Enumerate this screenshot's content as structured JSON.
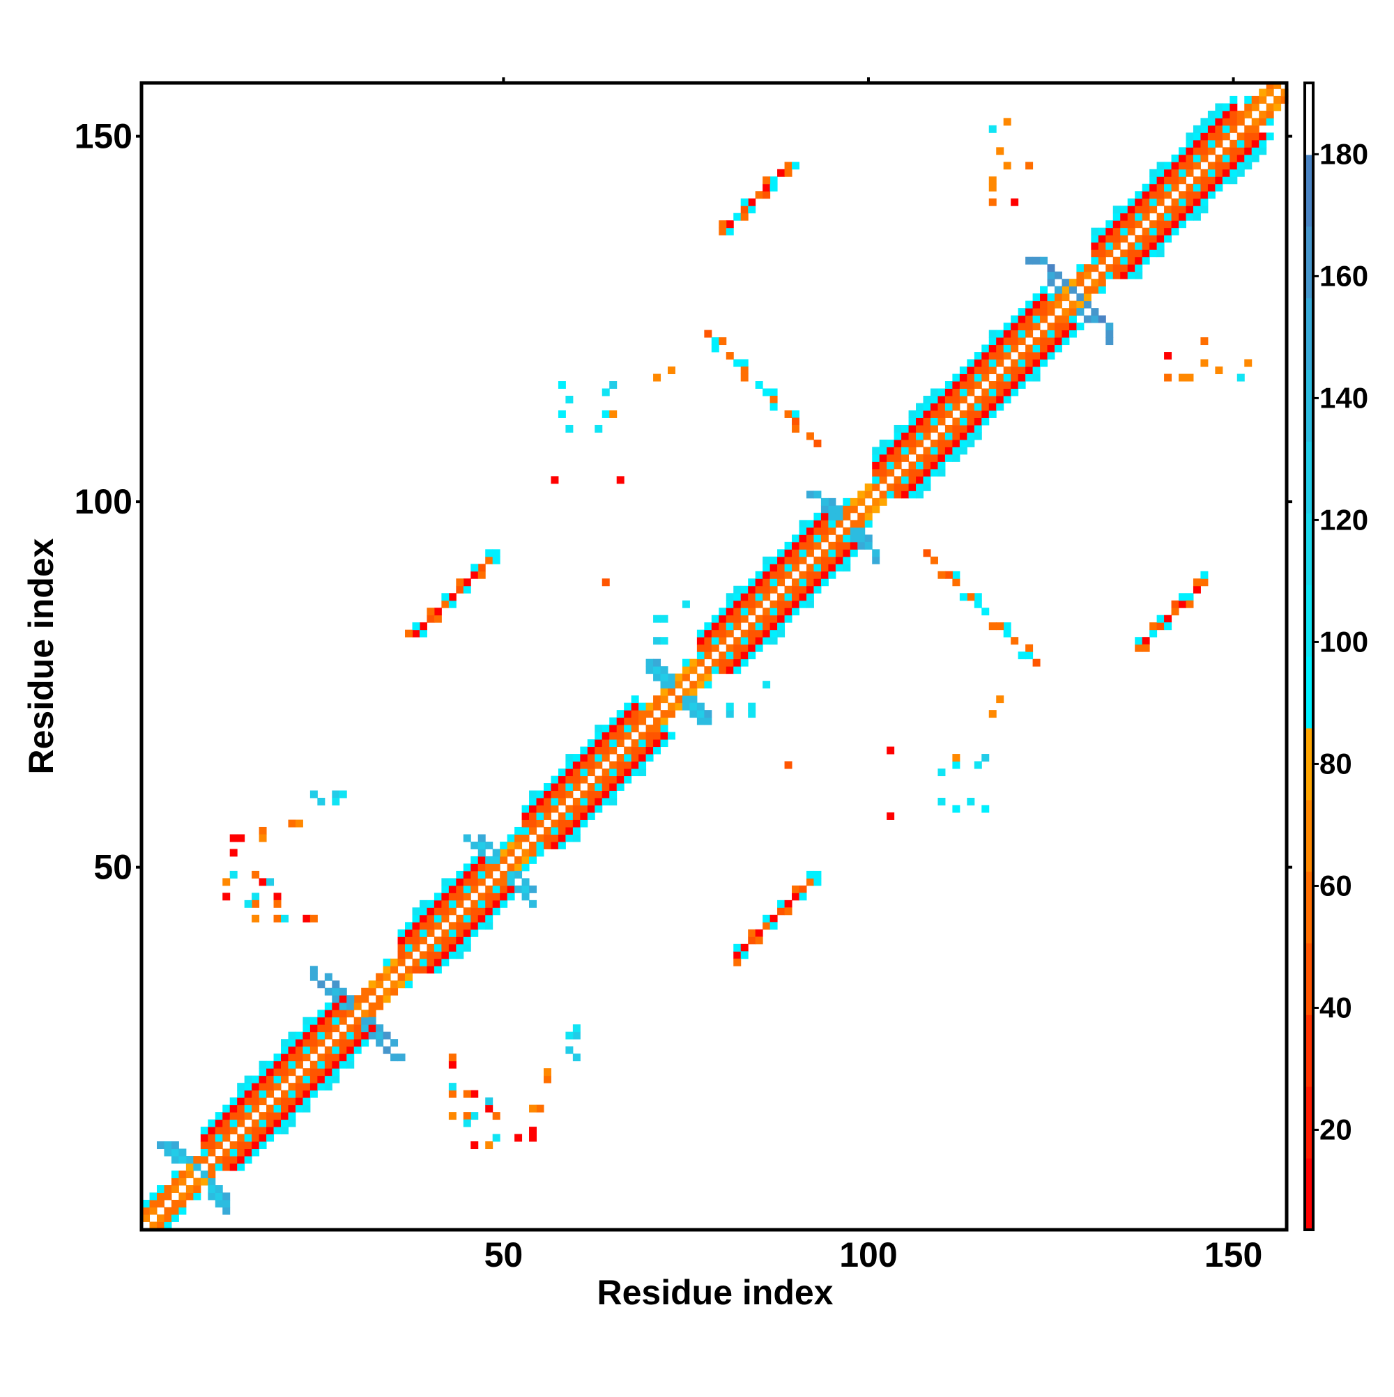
{
  "chart_data": {
    "type": "heatmap",
    "title": "",
    "xlabel": "Residue index",
    "ylabel": "Residue index",
    "n_residues": 157,
    "xlim": [
      0.4,
      157.3
    ],
    "ylim": [
      0.4,
      157.3
    ],
    "xticks": [
      50,
      100,
      150
    ],
    "yticks": [
      50,
      100,
      150
    ],
    "symmetric": true,
    "colorbar": {
      "range": [
        3.6,
        191.7
      ],
      "ticks": [
        20,
        40,
        60,
        80,
        100,
        120,
        140,
        160,
        180
      ],
      "bins": [
        "#ff0000",
        "#ff1a00",
        "#ff3300",
        "#ff5500",
        "#ff6e00",
        "#ff8800",
        "#ffa500",
        "#00f0ff",
        "#10e4f4",
        "#1cd8ec",
        "#22cce8",
        "#2cbce0",
        "#38aad8",
        "#4696cc",
        "#4a84c4",
        "#ffffff"
      ]
    },
    "helices": [
      [
        9,
        28
      ],
      [
        36,
        47
      ],
      [
        53,
        68
      ],
      [
        77,
        95
      ],
      [
        101,
        124
      ],
      [
        131,
        150
      ]
    ],
    "kinks": [
      {
        "center": 8,
        "arm": 4,
        "value": 130
      },
      {
        "center": 30,
        "arm": 6,
        "value": 140
      },
      {
        "center": 50,
        "arm": 4,
        "value": 125
      },
      {
        "center": 74,
        "arm": 4,
        "value": 130
      },
      {
        "center": 97,
        "arm": 4,
        "value": 135
      },
      {
        "center": 128,
        "arm": 5,
        "value": 150
      }
    ],
    "pairings": [
      {
        "x0": 80,
        "y0": 137,
        "dir": 1,
        "core": [
          60,
          10,
          92,
          40,
          10,
          60,
          10,
          92,
          10,
          60
        ],
        "flank": [
          92,
          0,
          60,
          92,
          0,
          40,
          92,
          0,
          60,
          92
        ],
        "flank2": [
          0,
          60,
          0,
          0,
          92,
          0,
          0,
          60,
          0,
          0
        ]
      },
      {
        "x0": 78,
        "y0": 123,
        "dir": -1,
        "core": [
          40,
          92,
          0,
          60,
          92,
          60,
          0,
          92,
          92,
          60,
          0,
          60,
          40,
          0,
          60,
          40
        ],
        "flank": [
          0,
          60,
          0,
          0,
          92,
          0,
          0,
          0,
          92,
          0,
          0,
          92,
          0,
          0,
          0,
          0
        ],
        "flank2": [
          0,
          0,
          92,
          0,
          0,
          0,
          60,
          0,
          0,
          0,
          92,
          0,
          0,
          60,
          0,
          0
        ]
      },
      {
        "x0": 38,
        "y0": 82,
        "dir": 1,
        "core": [
          10,
          10,
          40,
          10,
          60,
          10,
          40,
          10,
          10,
          40,
          60,
          92
        ],
        "flank": [
          92,
          0,
          60,
          0,
          92,
          0,
          92,
          0,
          60,
          0,
          92,
          0
        ],
        "flank2": [
          60,
          92,
          0,
          60,
          0,
          92,
          0,
          60,
          0,
          92,
          0,
          92
        ]
      }
    ],
    "contacts": [
      [
        58,
        116,
        92
      ],
      [
        59,
        114,
        100
      ],
      [
        58,
        112,
        92
      ],
      [
        59,
        110,
        100
      ],
      [
        64,
        115,
        100
      ],
      [
        65,
        116,
        130
      ],
      [
        64,
        112,
        92
      ],
      [
        65,
        112,
        70
      ],
      [
        63,
        110,
        100
      ],
      [
        13,
        54,
        10
      ],
      [
        14,
        54,
        10
      ],
      [
        17,
        55,
        60
      ],
      [
        17,
        54,
        70
      ],
      [
        21,
        56,
        60
      ],
      [
        22,
        56,
        70
      ],
      [
        13,
        52,
        10
      ],
      [
        12,
        48,
        70
      ],
      [
        13,
        49,
        100
      ],
      [
        16,
        49,
        60
      ],
      [
        17,
        48,
        10
      ],
      [
        18,
        48,
        130
      ],
      [
        16,
        46,
        100
      ],
      [
        16,
        45,
        60
      ],
      [
        15,
        45,
        100
      ],
      [
        19,
        46,
        10
      ],
      [
        19,
        45,
        60
      ],
      [
        12,
        46,
        10
      ],
      [
        16,
        43,
        70
      ],
      [
        19,
        43,
        60
      ],
      [
        20,
        43,
        100
      ],
      [
        23,
        43,
        10
      ],
      [
        24,
        43,
        60
      ],
      [
        24,
        60,
        130
      ],
      [
        27,
        60,
        130
      ],
      [
        28,
        60,
        100
      ],
      [
        59,
        25,
        130
      ],
      [
        59,
        27,
        100
      ],
      [
        57,
        103,
        10
      ],
      [
        64,
        89,
        40
      ],
      [
        71,
        117,
        70
      ],
      [
        71,
        84,
        100
      ],
      [
        71,
        81,
        130
      ],
      [
        66,
        103,
        10
      ],
      [
        73,
        118,
        70
      ],
      [
        72,
        81,
        100
      ],
      [
        72,
        84,
        100
      ],
      [
        75,
        86,
        100
      ],
      [
        117,
        141,
        60
      ],
      [
        120,
        141,
        10
      ],
      [
        117,
        143,
        70
      ],
      [
        117,
        144,
        70
      ],
      [
        117,
        151,
        100
      ],
      [
        119,
        152,
        70
      ],
      [
        119,
        146,
        70
      ],
      [
        122,
        146,
        60
      ],
      [
        118,
        148,
        70
      ]
    ]
  }
}
